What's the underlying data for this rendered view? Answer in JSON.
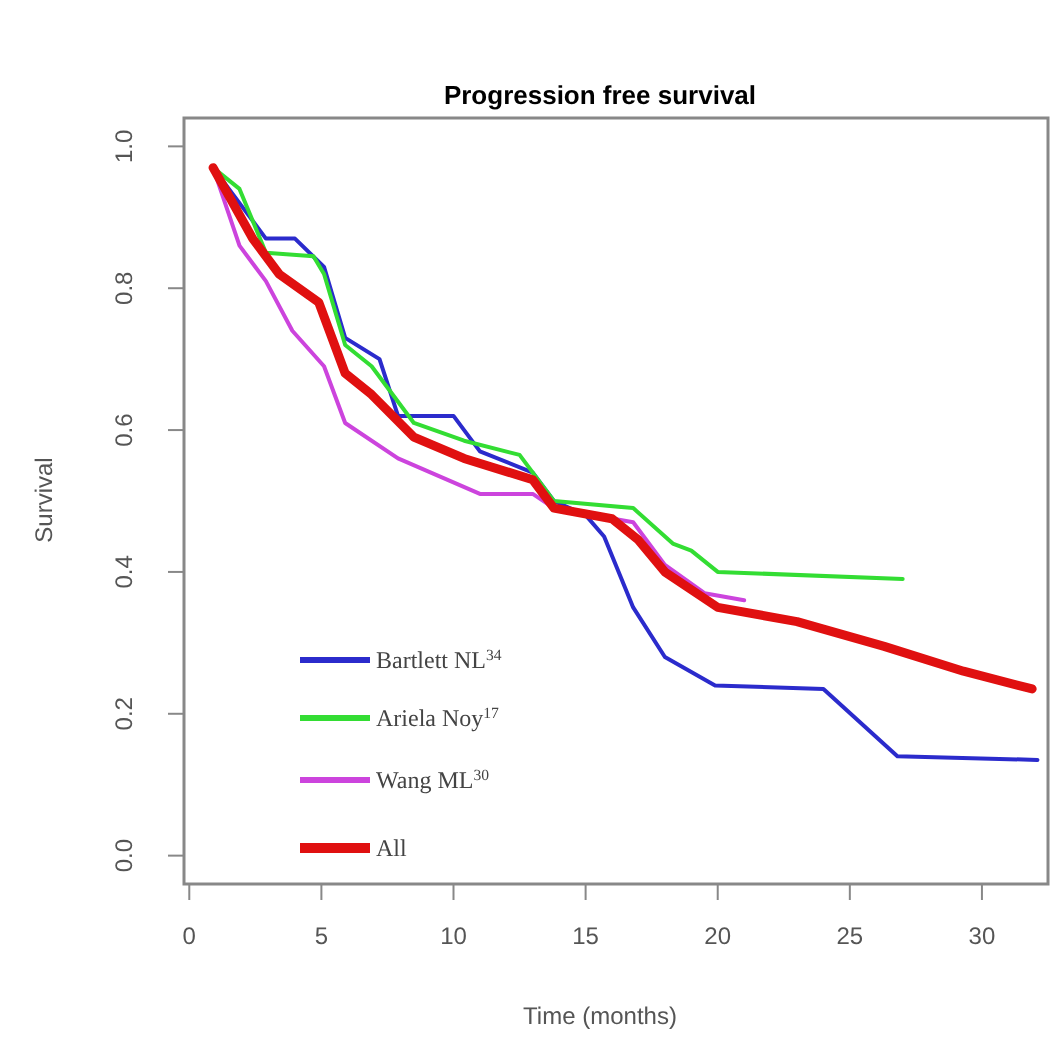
{
  "chart_data": {
    "type": "line",
    "title": "Progression free survival",
    "xlabel": "Time  (months)",
    "ylabel": "Survival",
    "xlim": [
      -0.2,
      32.5
    ],
    "ylim": [
      -0.04,
      1.04
    ],
    "xticks": [
      0,
      5,
      10,
      15,
      20,
      25,
      30
    ],
    "yticks": [
      {
        "value": 0,
        "label": "0.0"
      },
      {
        "value": 0.2,
        "label": "0.2"
      },
      {
        "value": 0.4,
        "label": "0.4"
      },
      {
        "value": 0.6,
        "label": "0.6"
      },
      {
        "value": 0.8,
        "label": "0.8"
      },
      {
        "value": 1,
        "label": "1.0"
      }
    ],
    "grid": false,
    "legend": "bottom left",
    "marker": "none",
    "line_style": "solid",
    "series": [
      {
        "name": "Bartlett NL$^{34}$",
        "color": "#2b2bcc",
        "x": [
          0.9,
          2.9,
          4.0,
          5.1,
          5.9,
          7.2,
          7.9,
          10,
          11,
          13,
          13.8,
          15,
          15.7,
          16.8,
          18,
          19.9,
          24,
          26.8,
          32.1
        ],
        "values": [
          0.97,
          0.87,
          0.87,
          0.83,
          0.73,
          0.7,
          0.62,
          0.62,
          0.57,
          0.54,
          0.5,
          0.48,
          0.45,
          0.35,
          0.28,
          0.24,
          0.235,
          0.14,
          0.135
        ]
      },
      {
        "name": "Ariela Noy$^{17}$",
        "color": "#33dd33",
        "x": [
          0.9,
          1.9,
          2.9,
          4.7,
          5.1,
          5.9,
          6.9,
          8.5,
          10.4,
          12.5,
          13.8,
          16.8,
          18.3,
          19,
          20,
          27
        ],
        "values": [
          0.97,
          0.94,
          0.85,
          0.845,
          0.82,
          0.72,
          0.69,
          0.61,
          0.585,
          0.565,
          0.5,
          0.49,
          0.44,
          0.43,
          0.4,
          0.39
        ]
      },
      {
        "name": "Wang ML$^{30}$",
        "color": "#cc44dd",
        "x": [
          0.9,
          1.9,
          2.9,
          3.9,
          5.1,
          5.9,
          7.9,
          11,
          13,
          13.8,
          16.8,
          18,
          19.5,
          21
        ],
        "values": [
          0.97,
          0.86,
          0.81,
          0.74,
          0.69,
          0.61,
          0.56,
          0.51,
          0.51,
          0.49,
          0.47,
          0.41,
          0.37,
          0.36
        ]
      },
      {
        "name": "All",
        "color": "#e01010",
        "x": [
          0.9,
          2.4,
          3.4,
          4.9,
          5.9,
          6.9,
          8.5,
          10.4,
          13,
          13.8,
          16,
          17,
          18,
          20,
          23,
          26.3,
          29.3,
          31.9
        ],
        "values": [
          0.97,
          0.87,
          0.82,
          0.78,
          0.68,
          0.65,
          0.59,
          0.56,
          0.53,
          0.49,
          0.475,
          0.445,
          0.4,
          0.35,
          0.33,
          0.295,
          0.26,
          0.235
        ]
      }
    ]
  }
}
